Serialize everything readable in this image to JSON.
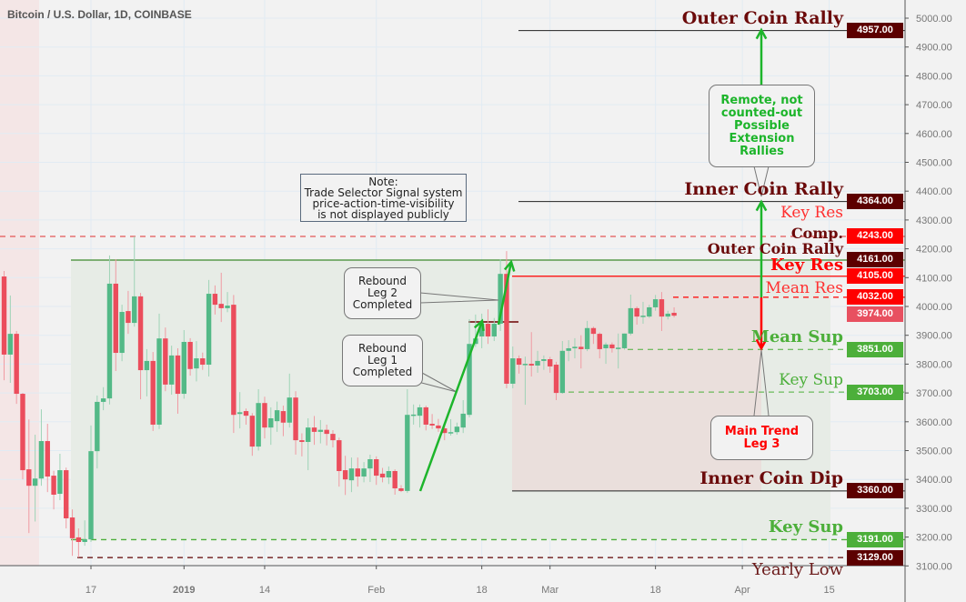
{
  "header": {
    "title": "Bitcoin / U.S. Dollar, 1D, COINBASE"
  },
  "colors": {
    "up": "#53b987",
    "down": "#eb4d5c",
    "dark_level": "#5c0000",
    "red_level": "#ff0000",
    "green_level": "#4caf3a",
    "last_price": "#e85060",
    "arrow_green": "#1db52b",
    "grid": "#e1ebf3"
  },
  "note": {
    "lines": [
      "Note:",
      "Trade Selector Signal system",
      "price-action-time-visibility",
      "is not displayed publicly"
    ]
  },
  "callouts": {
    "leg2": [
      "Rebound",
      "Leg 2",
      "Completed"
    ],
    "leg1": [
      "Rebound",
      "Leg 1",
      "Completed"
    ],
    "remote": [
      "Remote, not",
      "counted-out",
      "Possible",
      "Extension",
      "Rallies"
    ],
    "main": [
      "Main Trend",
      "Leg 3"
    ]
  },
  "levels": [
    {
      "label": "Outer Coin Rally",
      "price": 4957,
      "tag": "4957.00",
      "style": "dark"
    },
    {
      "label": "Inner Coin Rally",
      "price": 4364,
      "tag": "4364.00",
      "style": "dark"
    },
    {
      "label": "Key Res",
      "price": 4243,
      "tag": "4243.00",
      "style": "red-light"
    },
    {
      "label": "Comp.",
      "label2": "Outer Coin Rally",
      "price": 4161,
      "tag": "4161.00",
      "style": "dark"
    },
    {
      "label": "Key Res",
      "price": 4105,
      "tag": "4105.00",
      "style": "red-bold"
    },
    {
      "label": "Mean Res",
      "price": 4032,
      "tag": "4032.00",
      "style": "red-light"
    },
    {
      "label": "",
      "price": 3974,
      "tag": "3974.00",
      "style": "last"
    },
    {
      "label": "Mean Sup",
      "price": 3851,
      "tag": "3851.00",
      "style": "green-bold"
    },
    {
      "label": "Key Sup",
      "price": 3703,
      "tag": "3703.00",
      "style": "green-light"
    },
    {
      "label": "Inner Coin Dip",
      "price": 3360,
      "tag": "3360.00",
      "style": "dark"
    },
    {
      "label": "Key Sup",
      "price": 3191,
      "tag": "3191.00",
      "style": "green-bold"
    },
    {
      "label": "Yearly Low",
      "price": 3129,
      "tag": "3129.00",
      "style": "dark-light"
    }
  ],
  "chart_data": {
    "type": "candlestick",
    "title": "Bitcoin / U.S. Dollar, 1D, COINBASE",
    "ylim": [
      3100,
      5000
    ],
    "y_ticks": [
      "5000.00",
      "4900.00",
      "4800.00",
      "4700.00",
      "4600.00",
      "4500.00",
      "4400.00",
      "4300.00",
      "4200.00",
      "4100.00",
      "4000.00",
      "3900.00",
      "3800.00",
      "3700.00",
      "3600.00",
      "3500.00",
      "3400.00",
      "3300.00",
      "3200.00",
      "3100.00"
    ],
    "x_ticks": [
      {
        "date": "2018-12-17",
        "label": "17"
      },
      {
        "date": "2019-01-01",
        "label": "2019"
      },
      {
        "date": "2019-01-14",
        "label": "14"
      },
      {
        "date": "2019-02-01",
        "label": "Feb"
      },
      {
        "date": "2019-02-18",
        "label": "18"
      },
      {
        "date": "2019-03-01",
        "label": "Mar"
      },
      {
        "date": "2019-03-18",
        "label": "18"
      },
      {
        "date": "2019-04-01",
        "label": "Apr"
      },
      {
        "date": "2019-04-15",
        "label": "15"
      }
    ],
    "grid": true,
    "candles": [
      [
        "2018-12-03",
        4104,
        4123,
        3744,
        3833
      ],
      [
        "2018-12-04",
        3833,
        4038,
        3735,
        3905
      ],
      [
        "2018-12-05",
        3905,
        3915,
        3662,
        3697
      ],
      [
        "2018-12-06",
        3697,
        3700,
        3400,
        3432
      ],
      [
        "2018-12-07",
        3435,
        3608,
        3214,
        3378
      ],
      [
        "2018-12-08",
        3378,
        3555,
        3254,
        3403
      ],
      [
        "2018-12-09",
        3403,
        3643,
        3378,
        3533
      ],
      [
        "2018-12-10",
        3533,
        3593,
        3356,
        3410
      ],
      [
        "2018-12-11",
        3413,
        3430,
        3296,
        3347
      ],
      [
        "2018-12-12",
        3350,
        3489,
        3328,
        3432
      ],
      [
        "2018-12-13",
        3432,
        3441,
        3230,
        3265
      ],
      [
        "2018-12-14",
        3268,
        3296,
        3135,
        3196
      ],
      [
        "2018-12-15",
        3199,
        3230,
        3129,
        3183
      ],
      [
        "2018-12-16",
        3183,
        3258,
        3170,
        3192
      ],
      [
        "2018-12-17",
        3192,
        3587,
        3183,
        3498
      ],
      [
        "2018-12-18",
        3498,
        3691,
        3438,
        3669
      ],
      [
        "2018-12-19",
        3669,
        3720,
        3640,
        3681
      ],
      [
        "2018-12-20",
        3681,
        4177,
        3660,
        4079
      ],
      [
        "2018-12-21",
        4079,
        4164,
        3776,
        3839
      ],
      [
        "2018-12-22",
        3839,
        4006,
        3810,
        3981
      ],
      [
        "2018-12-23",
        3984,
        4054,
        3905,
        3943
      ],
      [
        "2018-12-24",
        3943,
        4243,
        3930,
        4035
      ],
      [
        "2018-12-25",
        4035,
        4047,
        3678,
        3779
      ],
      [
        "2018-12-26",
        3779,
        3852,
        3688,
        3811
      ],
      [
        "2018-12-27",
        3811,
        3842,
        3568,
        3590
      ],
      [
        "2018-12-28",
        3590,
        3975,
        3575,
        3889
      ],
      [
        "2018-12-29",
        3889,
        3927,
        3706,
        3729
      ],
      [
        "2018-12-30",
        3729,
        3864,
        3694,
        3830
      ],
      [
        "2018-12-31",
        3830,
        3855,
        3628,
        3697
      ],
      [
        "2019-01-01",
        3697,
        3918,
        3680,
        3877
      ],
      [
        "2019-01-02",
        3877,
        3890,
        3760,
        3783
      ],
      [
        "2019-01-03",
        3785,
        3880,
        3740,
        3820
      ],
      [
        "2019-01-04",
        3820,
        3840,
        3780,
        3798
      ],
      [
        "2019-01-05",
        3798,
        4092,
        3757,
        4044
      ],
      [
        "2019-01-06",
        4044,
        4073,
        3972,
        4006
      ],
      [
        "2019-01-07",
        4009,
        4117,
        3946,
        3994
      ],
      [
        "2019-01-08",
        3994,
        4050,
        3980,
        4003
      ],
      [
        "2019-01-09",
        4006,
        4040,
        3561,
        3624
      ],
      [
        "2019-01-10",
        3627,
        3703,
        3577,
        3633
      ],
      [
        "2019-01-11",
        3637,
        3646,
        3590,
        3621
      ],
      [
        "2019-01-12",
        3621,
        3630,
        3482,
        3514
      ],
      [
        "2019-01-13",
        3514,
        3713,
        3500,
        3665
      ],
      [
        "2019-01-14",
        3665,
        3687,
        3542,
        3580
      ],
      [
        "2019-01-15",
        3580,
        3650,
        3520,
        3612
      ],
      [
        "2019-01-16",
        3602,
        3670,
        3565,
        3640
      ],
      [
        "2019-01-17",
        3637,
        3656,
        3550,
        3597
      ],
      [
        "2019-01-18",
        3597,
        3767,
        3580,
        3684
      ],
      [
        "2019-01-19",
        3684,
        3706,
        3486,
        3536
      ],
      [
        "2019-01-20",
        3536,
        3560,
        3480,
        3530
      ],
      [
        "2019-01-21",
        3530,
        3612,
        3432,
        3580
      ],
      [
        "2019-01-22",
        3580,
        3620,
        3520,
        3565
      ],
      [
        "2019-01-23",
        3565,
        3606,
        3525,
        3572
      ],
      [
        "2019-01-24",
        3572,
        3590,
        3518,
        3558
      ],
      [
        "2019-01-25",
        3558,
        3571,
        3511,
        3536
      ],
      [
        "2019-01-26",
        3536,
        3545,
        3375,
        3429
      ],
      [
        "2019-01-27",
        3432,
        3482,
        3346,
        3400
      ],
      [
        "2019-01-28",
        3397,
        3476,
        3356,
        3438
      ],
      [
        "2019-01-29",
        3438,
        3476,
        3375,
        3410
      ],
      [
        "2019-01-30",
        3410,
        3460,
        3390,
        3438
      ],
      [
        "2019-01-31",
        3438,
        3486,
        3391,
        3470
      ],
      [
        "2019-02-01",
        3470,
        3480,
        3381,
        3413
      ],
      [
        "2019-02-02",
        3420,
        3440,
        3390,
        3407
      ],
      [
        "2019-02-03",
        3407,
        3445,
        3384,
        3429
      ],
      [
        "2019-02-04",
        3429,
        3435,
        3347,
        3369
      ],
      [
        "2019-02-05",
        3369,
        3380,
        3356,
        3360
      ],
      [
        "2019-02-06",
        3360,
        3713,
        3353,
        3624
      ],
      [
        "2019-02-07",
        3622,
        3660,
        3590,
        3625
      ],
      [
        "2019-02-08",
        3621,
        3660,
        3580,
        3650
      ],
      [
        "2019-02-09",
        3650,
        3656,
        3570,
        3590
      ],
      [
        "2019-02-10",
        3593,
        3627,
        3575,
        3587
      ],
      [
        "2019-02-11",
        3587,
        3610,
        3565,
        3577
      ],
      [
        "2019-02-12",
        3577,
        3590,
        3536,
        3561
      ],
      [
        "2019-02-13",
        3561,
        3609,
        3552,
        3564
      ],
      [
        "2019-02-14",
        3564,
        3597,
        3555,
        3583
      ],
      [
        "2019-02-15",
        3580,
        3675,
        3561,
        3628
      ],
      [
        "2019-02-16",
        3624,
        3956,
        3615,
        3870
      ],
      [
        "2019-02-17",
        3870,
        3972,
        3860,
        3889
      ],
      [
        "2019-02-18",
        3896,
        3975,
        3855,
        3940
      ],
      [
        "2019-02-19",
        3940,
        3990,
        3870,
        3896
      ],
      [
        "2019-02-20",
        3896,
        3960,
        3880,
        3940
      ],
      [
        "2019-02-21",
        3940,
        4164,
        3915,
        4113
      ],
      [
        "2019-02-22",
        4113,
        4192,
        3716,
        3732
      ],
      [
        "2019-02-23",
        3732,
        3861,
        3716,
        3820
      ],
      [
        "2019-02-24",
        3820,
        3830,
        3767,
        3798
      ],
      [
        "2019-02-25",
        3798,
        3826,
        3659,
        3801
      ],
      [
        "2019-02-26",
        3801,
        3911,
        3757,
        3795
      ],
      [
        "2019-02-27",
        3795,
        3846,
        3770,
        3811
      ],
      [
        "2019-02-28",
        3811,
        3830,
        3780,
        3817
      ],
      [
        "2019-03-01",
        3817,
        3825,
        3770,
        3792
      ],
      [
        "2019-03-02",
        3798,
        3808,
        3675,
        3700
      ],
      [
        "2019-03-03",
        3700,
        3880,
        3697,
        3846
      ],
      [
        "2019-03-04",
        3846,
        3883,
        3810,
        3855
      ],
      [
        "2019-03-05",
        3855,
        3890,
        3820,
        3860
      ],
      [
        "2019-03-06",
        3860,
        3900,
        3785,
        3852
      ],
      [
        "2019-03-07",
        3852,
        3950,
        3845,
        3925
      ],
      [
        "2019-03-08",
        3925,
        3930,
        3870,
        3905
      ],
      [
        "2019-03-09",
        3905,
        3910,
        3820,
        3852
      ],
      [
        "2019-03-10",
        3855,
        3875,
        3801,
        3868
      ],
      [
        "2019-03-11",
        3868,
        3875,
        3840,
        3855
      ],
      [
        "2019-03-12",
        3855,
        3906,
        3785,
        3857
      ],
      [
        "2019-03-13",
        3855,
        3906,
        3850,
        3906
      ],
      [
        "2019-03-14",
        3906,
        4041,
        3900,
        3994
      ],
      [
        "2019-03-15",
        3994,
        4000,
        3937,
        3965
      ],
      [
        "2019-03-16",
        3965,
        4016,
        3940,
        3968
      ],
      [
        "2019-03-17",
        3965,
        4006,
        3960,
        3997
      ],
      [
        "2019-03-18",
        3997,
        4040,
        3985,
        4025
      ],
      [
        "2019-03-19",
        4025,
        4050,
        3915,
        3965
      ],
      [
        "2019-03-20",
        3965,
        3985,
        3955,
        3975
      ],
      [
        "2019-03-21",
        3978,
        3997,
        3962,
        3968
      ]
    ]
  }
}
